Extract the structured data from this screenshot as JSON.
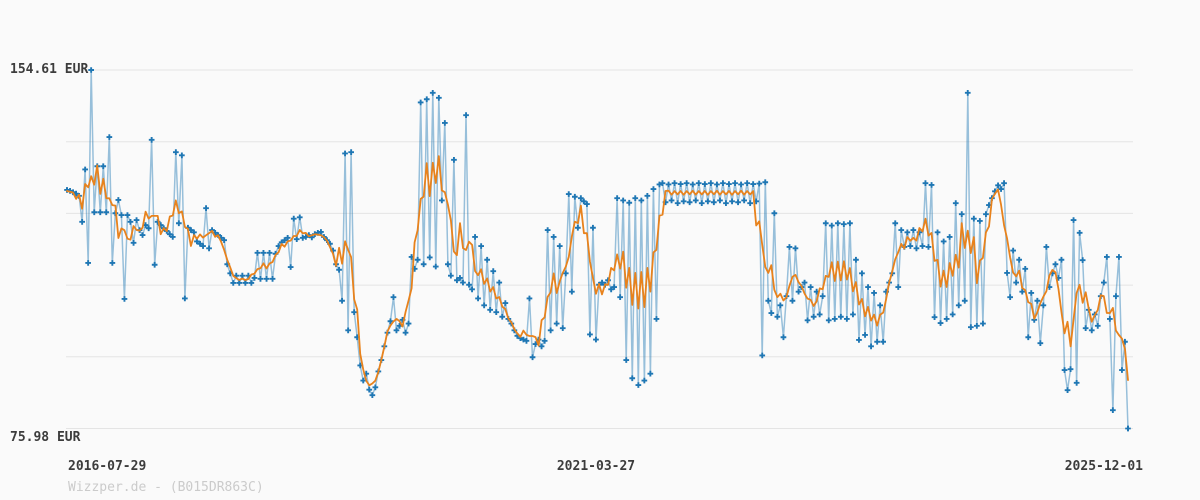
{
  "labels": {
    "y_max": "154.61 EUR",
    "y_min": "75.98 EUR",
    "x_left": "2016-07-29",
    "x_mid": "2021-03-27",
    "x_right": "2025-12-01",
    "watermark": "Wizzper.de - (B015DR863C)"
  },
  "colors": {
    "price_marker": "#1f77b4",
    "price_line": "rgba(31,119,180,0.45)",
    "average_line": "#e8821c",
    "grid": "#e4e4e4",
    "text": "#3c3c3c",
    "watermark": "#cbcbcb",
    "background": "#fafafa"
  },
  "chart_data": {
    "type": "line",
    "title": "",
    "currency": "EUR",
    "ylim": [
      75.98,
      154.61
    ],
    "y_gridlines": [
      154.61,
      138.88,
      123.16,
      107.43,
      91.71,
      75.98
    ],
    "x_ticks": [
      "2016-07-29",
      "2021-03-27",
      "2025-12-01"
    ],
    "grid": "horizontal",
    "legend": "none",
    "series": [
      {
        "name": "price",
        "color": "#1f77b4",
        "marker": "plus",
        "values": [
          128.3,
          128.1,
          127.8,
          127.5,
          127.0,
          121.3,
          132.8,
          112.3,
          154.61,
          123.4,
          133.5,
          123.4,
          133.5,
          123.4,
          139.9,
          112.3,
          123.2,
          126.1,
          122.8,
          104.4,
          122.8,
          121.3,
          116.7,
          121.7,
          119.5,
          118.4,
          120.6,
          119.9,
          139.3,
          111.9,
          121.3,
          120.6,
          119.9,
          119.3,
          118.6,
          118.0,
          136.6,
          121.0,
          135.9,
          104.5,
          120.0,
          119.5,
          119.0,
          117.0,
          116.5,
          116.0,
          124.3,
          115.5,
          119.5,
          118.9,
          118.4,
          117.8,
          117.3,
          112.0,
          110.0,
          107.9,
          109.5,
          107.9,
          109.5,
          107.9,
          109.5,
          107.9,
          109.0,
          114.5,
          108.8,
          114.5,
          108.8,
          114.5,
          108.8,
          114.3,
          116.0,
          116.8,
          117.3,
          117.8,
          111.4,
          122.0,
          117.5,
          122.3,
          117.8,
          118.0,
          118.4,
          117.9,
          118.6,
          118.9,
          119.1,
          118.0,
          117.3,
          116.5,
          115.0,
          112.0,
          110.8,
          104.0,
          136.3,
          97.5,
          136.6,
          101.5,
          96.0,
          89.8,
          86.5,
          88.0,
          84.5,
          83.3,
          85.0,
          88.5,
          91.0,
          94.0,
          97.0,
          99.5,
          104.8,
          97.5,
          98.5,
          99.8,
          97.0,
          99.0,
          113.6,
          111.0,
          113.0,
          147.5,
          112.0,
          148.2,
          113.5,
          149.6,
          111.5,
          148.5,
          126.0,
          143.0,
          112.0,
          109.5,
          134.9,
          108.5,
          109.0,
          108.0,
          144.7,
          107.5,
          106.5,
          118.0,
          104.5,
          116.0,
          103.0,
          113.0,
          102.0,
          110.5,
          101.5,
          108.0,
          100.5,
          103.5,
          100.0,
          99.0,
          97.5,
          96.3,
          95.8,
          95.5,
          95.2,
          104.5,
          91.6,
          94.5,
          95.5,
          94.0,
          95.2,
          119.5,
          97.5,
          118.0,
          99.0,
          116.0,
          98.0,
          110.0,
          127.4,
          106.0,
          126.8,
          120.0,
          126.5,
          125.8,
          125.2,
          96.6,
          120.0,
          95.5,
          107.5,
          108.0,
          107.5,
          108.5,
          106.5,
          107.0,
          126.5,
          104.8,
          126.0,
          91.0,
          125.5,
          87.0,
          126.5,
          85.5,
          126.0,
          86.5,
          127.0,
          88.0,
          128.5,
          100.0,
          129.5,
          129.8,
          125.6,
          129.5,
          126.0,
          129.8,
          125.4,
          129.6,
          125.8,
          129.8,
          125.6,
          129.5,
          126.0,
          129.8,
          125.4,
          129.6,
          125.8,
          129.8,
          125.6,
          129.5,
          126.0,
          129.8,
          125.4,
          129.6,
          125.8,
          129.8,
          125.6,
          129.5,
          126.0,
          129.8,
          125.4,
          129.6,
          125.8,
          129.7,
          92.0,
          130.0,
          104.0,
          101.3,
          123.2,
          100.5,
          103.0,
          96.0,
          105.0,
          115.8,
          104.0,
          115.5,
          106.0,
          107.0,
          108.0,
          99.7,
          107.0,
          100.5,
          106.0,
          101.0,
          105.0,
          121.0,
          99.7,
          120.5,
          100.0,
          121.0,
          100.5,
          120.8,
          100.0,
          121.0,
          101.0,
          113.0,
          95.4,
          110.0,
          96.5,
          107.0,
          94.0,
          105.7,
          95.0,
          103.0,
          95.0,
          106.0,
          108.0,
          110.0,
          121.0,
          107.0,
          119.5,
          115.8,
          119.0,
          116.0,
          119.5,
          115.5,
          119.0,
          116.0,
          129.8,
          115.8,
          129.4,
          100.4,
          119.0,
          99.1,
          117.0,
          100.0,
          118.0,
          101.0,
          125.4,
          103.0,
          123.0,
          104.0,
          149.6,
          98.2,
          122.0,
          98.5,
          121.5,
          99.0,
          123.0,
          125.0,
          126.5,
          128.0,
          129.3,
          128.5,
          129.8,
          110.1,
          104.8,
          115.0,
          108.0,
          113.0,
          106.0,
          111.0,
          96.0,
          105.7,
          99.8,
          104.0,
          94.7,
          103.0,
          115.8,
          107.0,
          110.0,
          112.0,
          109.0,
          113.0,
          88.8,
          84.4,
          89.0,
          121.7,
          86.0,
          118.9,
          112.9,
          98.0,
          102.0,
          97.5,
          101.0,
          98.5,
          105.0,
          108.0,
          113.6,
          100.0,
          80.0,
          105.0,
          113.6,
          88.8,
          95.0,
          75.98
        ]
      },
      {
        "name": "moving-average",
        "color": "#e8821c",
        "derived": "rolling_mean_window_5"
      }
    ]
  }
}
